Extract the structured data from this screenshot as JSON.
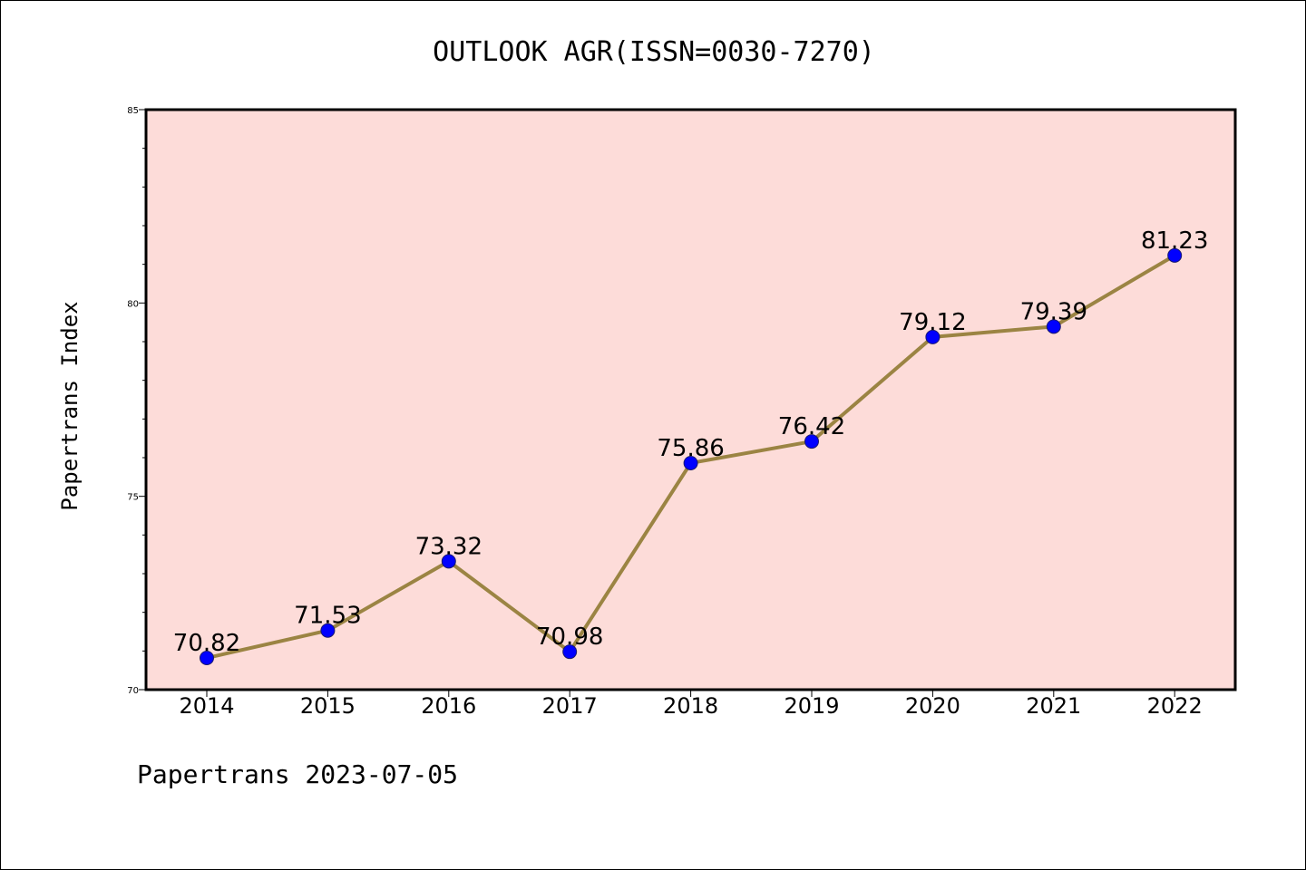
{
  "chart_data": {
    "type": "line",
    "title": "OUTLOOK AGR(ISSN=0030-7270)",
    "xlabel": "",
    "ylabel": "Papertrans Index",
    "footer": "Papertrans 2023-07-05",
    "categories": [
      "2014",
      "2015",
      "2016",
      "2017",
      "2018",
      "2019",
      "2020",
      "2021",
      "2022"
    ],
    "series": [
      {
        "values": [
          70.82,
          71.53,
          73.32,
          70.98,
          75.86,
          76.42,
          79.12,
          79.39,
          81.23
        ],
        "labels": [
          "70.82",
          "71.53",
          "73.32",
          "70.98",
          "75.86",
          "76.42",
          "79.12",
          "79.39",
          "81.23"
        ]
      }
    ],
    "ylim": [
      70,
      85
    ],
    "yticks": [
      "70",
      "75",
      "80",
      "85"
    ],
    "grid": false,
    "legend": "none",
    "colors": {
      "plot_background": "#fddcd9",
      "line": "#9b8443",
      "marker": "#0000ff",
      "marker_edge": "#1a1a6e",
      "axes": "#000000"
    }
  }
}
